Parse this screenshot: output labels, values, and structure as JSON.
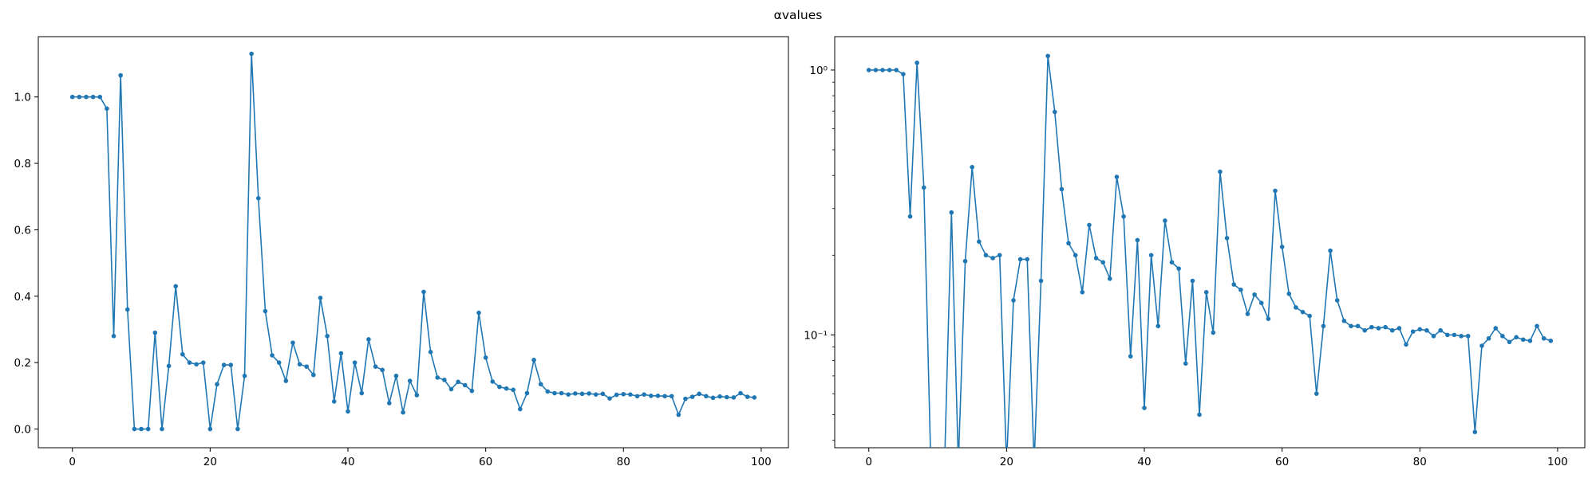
{
  "figure": {
    "title": "αvalues"
  },
  "chart_data": [
    {
      "type": "line",
      "title": "",
      "xlabel": "",
      "ylabel": "",
      "yscale": "linear",
      "xlim": [
        -4.95,
        103.95
      ],
      "ylim": [
        -0.0563,
        1.1816
      ],
      "xticks": [
        0,
        20,
        40,
        60,
        80,
        100
      ],
      "xtick_labels": [
        "0",
        "20",
        "40",
        "60",
        "80",
        "100"
      ],
      "yticks": [
        0.0,
        0.2,
        0.4,
        0.6,
        0.8,
        1.0
      ],
      "ytick_labels": [
        "0.0",
        "0.2",
        "0.4",
        "0.6",
        "0.8",
        "1.0"
      ],
      "grid": false,
      "color": "#1f77b4",
      "series": [
        {
          "x": [
            0,
            1,
            2,
            3,
            4,
            5,
            6,
            7,
            8,
            9,
            10,
            11,
            12,
            13,
            14,
            15,
            16,
            17,
            18,
            19,
            20,
            21,
            22,
            23,
            24,
            25,
            26,
            27,
            28,
            29,
            30,
            31,
            32,
            33,
            34,
            35,
            36,
            37,
            38,
            39,
            40,
            41,
            42,
            43,
            44,
            45,
            46,
            47,
            48,
            49,
            50,
            51,
            52,
            53,
            54,
            55,
            56,
            57,
            58,
            59,
            60,
            61,
            62,
            63,
            64,
            65,
            66,
            67,
            68,
            69,
            70,
            71,
            72,
            73,
            74,
            75,
            76,
            77,
            78,
            79,
            80,
            81,
            82,
            83,
            84,
            85,
            86,
            87,
            88,
            89,
            90,
            91,
            92,
            93,
            94,
            95,
            96,
            97,
            98,
            99
          ],
          "values": [
            1.0,
            1.0,
            1.0,
            1.0,
            1.0,
            0.965,
            0.28,
            1.065,
            0.36,
            0.0,
            0.0,
            0.0,
            0.29,
            0.0,
            0.19,
            0.43,
            0.225,
            0.2,
            0.195,
            0.2,
            0.0,
            0.135,
            0.193,
            0.193,
            0.0,
            0.16,
            1.13,
            0.695,
            0.355,
            0.222,
            0.2,
            0.145,
            0.26,
            0.195,
            0.188,
            0.163,
            0.395,
            0.28,
            0.083,
            0.228,
            0.053,
            0.2,
            0.108,
            0.27,
            0.188,
            0.178,
            0.078,
            0.16,
            0.05,
            0.145,
            0.102,
            0.413,
            0.232,
            0.155,
            0.148,
            0.12,
            0.142,
            0.132,
            0.115,
            0.35,
            0.215,
            0.143,
            0.127,
            0.122,
            0.118,
            0.06,
            0.108,
            0.208,
            0.135,
            0.113,
            0.108,
            0.108,
            0.104,
            0.107,
            0.106,
            0.107,
            0.104,
            0.106,
            0.092,
            0.103,
            0.105,
            0.104,
            0.099,
            0.104,
            0.1,
            0.1,
            0.099,
            0.099,
            0.043,
            0.091,
            0.097,
            0.106,
            0.099,
            0.094,
            0.098,
            0.096,
            0.095,
            0.108,
            0.097,
            0.095
          ]
        }
      ]
    },
    {
      "type": "line",
      "title": "",
      "xlabel": "",
      "ylabel": "",
      "yscale": "log",
      "xlim": [
        -4.95,
        103.95
      ],
      "ylim": [
        0.0375,
        1.337
      ],
      "xticks": [
        0,
        20,
        40,
        60,
        80,
        100
      ],
      "xtick_labels": [
        "0",
        "20",
        "40",
        "60",
        "80",
        "100"
      ],
      "yticks": [
        0.1,
        1.0
      ],
      "ytick_labels": [
        "10⁻¹",
        "10⁰"
      ],
      "yticks_minor": [
        0.04,
        0.05,
        0.06,
        0.07,
        0.08,
        0.09,
        0.2,
        0.3,
        0.4,
        0.5,
        0.6,
        0.7,
        0.8,
        0.9
      ],
      "grid": false,
      "color": "#1f77b4",
      "series": [
        {
          "x": [
            0,
            1,
            2,
            3,
            4,
            5,
            6,
            7,
            8,
            9,
            10,
            11,
            12,
            13,
            14,
            15,
            16,
            17,
            18,
            19,
            20,
            21,
            22,
            23,
            24,
            25,
            26,
            27,
            28,
            29,
            30,
            31,
            32,
            33,
            34,
            35,
            36,
            37,
            38,
            39,
            40,
            41,
            42,
            43,
            44,
            45,
            46,
            47,
            48,
            49,
            50,
            51,
            52,
            53,
            54,
            55,
            56,
            57,
            58,
            59,
            60,
            61,
            62,
            63,
            64,
            65,
            66,
            67,
            68,
            69,
            70,
            71,
            72,
            73,
            74,
            75,
            76,
            77,
            78,
            79,
            80,
            81,
            82,
            83,
            84,
            85,
            86,
            87,
            88,
            89,
            90,
            91,
            92,
            93,
            94,
            95,
            96,
            97,
            98,
            99
          ],
          "values": [
            1.0,
            1.0,
            1.0,
            1.0,
            1.0,
            0.965,
            0.28,
            1.065,
            0.36,
            0.0,
            0.0,
            0.0,
            0.29,
            0.0,
            0.19,
            0.43,
            0.225,
            0.2,
            0.195,
            0.2,
            0.0,
            0.135,
            0.193,
            0.193,
            0.0,
            0.16,
            1.13,
            0.695,
            0.355,
            0.222,
            0.2,
            0.145,
            0.26,
            0.195,
            0.188,
            0.163,
            0.395,
            0.28,
            0.083,
            0.228,
            0.053,
            0.2,
            0.108,
            0.27,
            0.188,
            0.178,
            0.078,
            0.16,
            0.05,
            0.145,
            0.102,
            0.413,
            0.232,
            0.155,
            0.148,
            0.12,
            0.142,
            0.132,
            0.115,
            0.35,
            0.215,
            0.143,
            0.127,
            0.122,
            0.118,
            0.06,
            0.108,
            0.208,
            0.135,
            0.113,
            0.108,
            0.108,
            0.104,
            0.107,
            0.106,
            0.107,
            0.104,
            0.106,
            0.092,
            0.103,
            0.105,
            0.104,
            0.099,
            0.104,
            0.1,
            0.1,
            0.099,
            0.099,
            0.043,
            0.091,
            0.097,
            0.106,
            0.099,
            0.094,
            0.098,
            0.096,
            0.095,
            0.108,
            0.097,
            0.095
          ]
        }
      ]
    }
  ]
}
